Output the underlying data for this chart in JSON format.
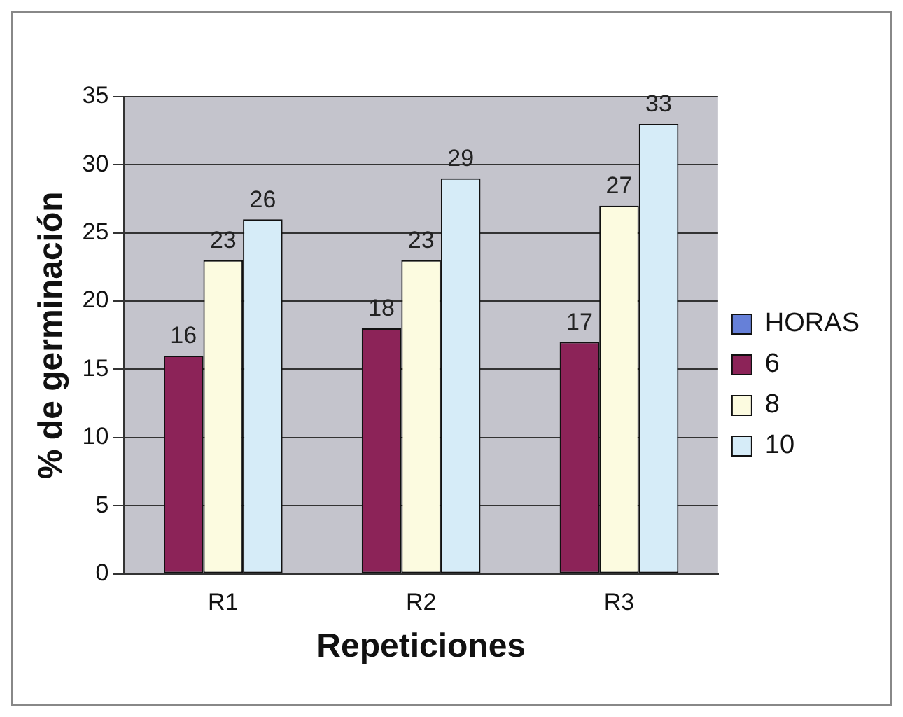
{
  "chart_data": {
    "type": "bar",
    "xlabel": "Repeticiones",
    "ylabel": "% de germinación",
    "categories": [
      "R1",
      "R2",
      "R3"
    ],
    "series": [
      {
        "name": "HORAS",
        "color": "#6680d8",
        "values": [
          null,
          null,
          null
        ]
      },
      {
        "name": "6",
        "color": "#8c2358",
        "values": [
          16,
          18,
          17
        ]
      },
      {
        "name": "8",
        "color": "#fcfbe0",
        "values": [
          23,
          23,
          27
        ]
      },
      {
        "name": "10",
        "color": "#d6ecf8",
        "values": [
          26,
          29,
          33
        ]
      }
    ],
    "ylim": [
      0,
      35
    ],
    "yticks": [
      0,
      5,
      10,
      15,
      20,
      25,
      30,
      35
    ],
    "grid": "y",
    "legend": "right",
    "data_labels": true
  }
}
